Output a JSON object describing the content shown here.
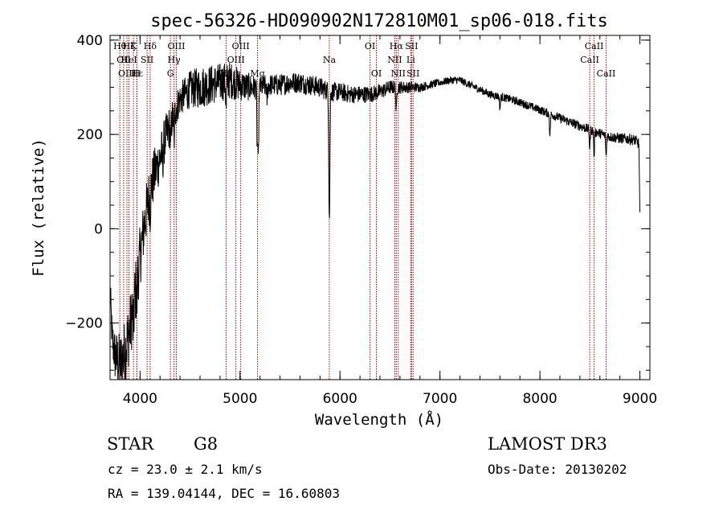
{
  "chart_data": {
    "type": "line",
    "title": "spec-56326-HD090902N172810M01_sp06-018.fits",
    "xlabel": "Wavelength (Å)",
    "ylabel": "Flux (relative)",
    "xlim": [
      3700,
      9100
    ],
    "ylim": [
      -320,
      410
    ],
    "x_ticks": [
      4000,
      5000,
      6000,
      7000,
      8000,
      9000
    ],
    "y_ticks": [
      -200,
      0,
      200,
      400
    ],
    "x_minor_step": 200,
    "y_minor_step": 50,
    "grid": false,
    "series": [
      {
        "color": "#000000",
        "continuum_x": [
          3700,
          3720,
          3750,
          3800,
          3850,
          3900,
          3950,
          4000,
          4050,
          4100,
          4150,
          4200,
          4250,
          4300,
          4350,
          4400,
          4450,
          4500,
          4600,
          4700,
          4800,
          4900,
          5000,
          5100,
          5200,
          5300,
          5400,
          5500,
          5600,
          5700,
          5800,
          5900,
          6000,
          6100,
          6200,
          6300,
          6400,
          6500,
          6600,
          6700,
          6800,
          6900,
          7000,
          7100,
          7200,
          7300,
          7400,
          7500,
          7600,
          7700,
          7800,
          7900,
          8000,
          8100,
          8200,
          8300,
          8400,
          8500,
          8600,
          8700,
          8800,
          8900,
          8950,
          8990,
          9000
        ],
        "continuum_y": [
          -130,
          -230,
          -270,
          -290,
          -260,
          -210,
          -140,
          -60,
          20,
          80,
          120,
          150,
          190,
          220,
          250,
          275,
          285,
          295,
          300,
          305,
          310,
          315,
          305,
          300,
          300,
          305,
          305,
          310,
          310,
          305,
          300,
          290,
          290,
          285,
          285,
          285,
          290,
          300,
          300,
          300,
          300,
          305,
          310,
          315,
          315,
          305,
          295,
          285,
          280,
          275,
          268,
          260,
          252,
          243,
          235,
          226,
          218,
          210,
          202,
          195,
          192,
          190,
          188,
          180,
          30
        ],
        "noise_x": [
          3700,
          3800,
          3950,
          4100,
          4300,
          4400,
          4600,
          4900,
          5200,
          5800,
          6000,
          6300,
          6600,
          6800,
          7000,
          8000,
          9000
        ],
        "noise_y": [
          40,
          70,
          70,
          60,
          45,
          35,
          45,
          40,
          24,
          22,
          20,
          18,
          14,
          10,
          8,
          9,
          12
        ],
        "absorption": [
          {
            "x": 3934,
            "depth": 60
          },
          {
            "x": 3968,
            "depth": 50
          },
          {
            "x": 4101,
            "depth": 40
          },
          {
            "x": 4226,
            "depth": 30
          },
          {
            "x": 4305,
            "depth": 60
          },
          {
            "x": 4340,
            "depth": 60
          },
          {
            "x": 4861,
            "depth": 60
          },
          {
            "x": 5172,
            "depth": 120
          },
          {
            "x": 5183,
            "depth": 160
          },
          {
            "x": 5270,
            "depth": 30
          },
          {
            "x": 5890,
            "depth": 140
          },
          {
            "x": 5896,
            "depth": 200
          },
          {
            "x": 6563,
            "depth": 55
          },
          {
            "x": 7600,
            "depth": 25
          },
          {
            "x": 8100,
            "depth": 45
          },
          {
            "x": 8498,
            "depth": 40
          },
          {
            "x": 8542,
            "depth": 55
          },
          {
            "x": 8662,
            "depth": 45
          }
        ]
      }
    ],
    "line_markers": [
      {
        "x": 3798,
        "labels": [
          {
            "text": "Hθ",
            "row": 0
          }
        ]
      },
      {
        "x": 3836,
        "labels": [
          {
            "text": "OII",
            "row": 1
          }
        ]
      },
      {
        "x": 3869,
        "labels": [
          {
            "text": "OIII",
            "row": 2
          }
        ]
      },
      {
        "x": 3889,
        "labels": [
          {
            "text": "Hζ",
            "row": 0
          },
          {
            "text": "HeI",
            "row": 1
          }
        ]
      },
      {
        "x": 3934,
        "labels": [
          {
            "text": "K",
            "row": 0
          }
        ]
      },
      {
        "x": 3968,
        "labels": [
          {
            "text": "Hε",
            "row": 2
          }
        ]
      },
      {
        "x": 3968,
        "labels": [
          {
            "text": "H",
            "row": 2
          }
        ]
      },
      {
        "x": 4071,
        "labels": [
          {
            "text": "SII",
            "row": 1
          }
        ]
      },
      {
        "x": 4101,
        "labels": [
          {
            "text": "Hδ",
            "row": 0
          }
        ]
      },
      {
        "x": 4304,
        "labels": [
          {
            "text": "G",
            "row": 2
          }
        ]
      },
      {
        "x": 4340,
        "labels": [
          {
            "text": "Hγ",
            "row": 1
          }
        ]
      },
      {
        "x": 4363,
        "labels": [
          {
            "text": "OIII",
            "row": 0
          }
        ]
      },
      {
        "x": 4861,
        "labels": [
          {
            "text": "Hβ",
            "row": 2
          }
        ]
      },
      {
        "x": 4959,
        "labels": [
          {
            "text": "OIII",
            "row": 1
          }
        ]
      },
      {
        "x": 5007,
        "labels": [
          {
            "text": "OIII",
            "row": 0
          }
        ]
      },
      {
        "x": 5175,
        "labels": [
          {
            "text": "Mg",
            "row": 2
          }
        ]
      },
      {
        "x": 5893,
        "labels": [
          {
            "text": "Na",
            "row": 1
          }
        ]
      },
      {
        "x": 6300,
        "labels": [
          {
            "text": "OI",
            "row": 0
          }
        ]
      },
      {
        "x": 6364,
        "labels": [
          {
            "text": "OI",
            "row": 2
          }
        ]
      },
      {
        "x": 6548,
        "labels": [
          {
            "text": "NII",
            "row": 1
          }
        ]
      },
      {
        "x": 6563,
        "labels": [
          {
            "text": "Hα",
            "row": 0
          }
        ]
      },
      {
        "x": 6583,
        "labels": [
          {
            "text": "NII",
            "row": 2
          }
        ]
      },
      {
        "x": 6708,
        "labels": [
          {
            "text": "Li",
            "row": 1
          }
        ]
      },
      {
        "x": 6716,
        "labels": [
          {
            "text": "SII",
            "row": 0
          }
        ]
      },
      {
        "x": 6731,
        "labels": [
          {
            "text": "SII",
            "row": 2
          }
        ]
      },
      {
        "x": 8498,
        "labels": [
          {
            "text": "CaII",
            "row": 1
          }
        ]
      },
      {
        "x": 8542,
        "labels": [
          {
            "text": "CaII",
            "row": 0
          }
        ]
      },
      {
        "x": 8662,
        "labels": [
          {
            "text": "CaII",
            "row": 2
          }
        ]
      }
    ],
    "marker_color": "#b00000"
  },
  "footer": {
    "class": "STAR",
    "subclass": "G8",
    "survey": "LAMOST DR3",
    "cz": "cz = 23.0 ± 2.1 km/s",
    "obs_date": "Obs-Date: 20130202",
    "coords": "RA = 139.04144, DEC =  16.60803"
  }
}
